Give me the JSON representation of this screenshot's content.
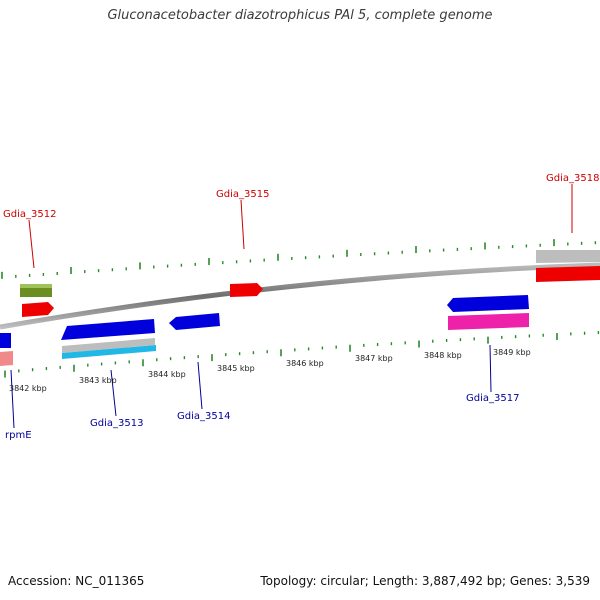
{
  "header": {
    "title": "Gluconacetobacter diazotrophicus PAl 5, complete genome"
  },
  "footer": {
    "accession": "Accession: NC_011365",
    "stats": "Topology: circular; Length: 3,887,492 bp; Genes: 3,539"
  },
  "kbp_ticks": [
    {
      "label": "3842 kbp"
    },
    {
      "label": "3843 kbp"
    },
    {
      "label": "3844 kbp"
    },
    {
      "label": "3845 kbp"
    },
    {
      "label": "3846 kbp"
    },
    {
      "label": "3847 kbp"
    },
    {
      "label": "3848 kbp"
    },
    {
      "label": "3849 kbp"
    }
  ],
  "gene_labels": [
    {
      "name": "Gdia_3512",
      "strand": "forward",
      "color": "#cc0000"
    },
    {
      "name": "Gdia_3515",
      "strand": "forward",
      "color": "#cc0000"
    },
    {
      "name": "Gdia_3518",
      "strand": "forward",
      "color": "#cc0000"
    },
    {
      "name": "rpmE",
      "strand": "reverse",
      "color": "#000099"
    },
    {
      "name": "Gdia_3513",
      "strand": "reverse",
      "color": "#000099"
    },
    {
      "name": "Gdia_3514",
      "strand": "reverse",
      "color": "#000099"
    },
    {
      "name": "Gdia_3517",
      "strand": "reverse",
      "color": "#000099"
    }
  ],
  "colors": {
    "backbone": "#808080",
    "tick": "#2a8a2a",
    "forward_label": "#cc0000",
    "reverse_label": "#000099",
    "gene_red": "#ee0000",
    "gene_olive": "#6b8e23",
    "gene_blue": "#0000dd",
    "gene_gray": "#bdbdbd",
    "gene_cyan": "#22b8e6",
    "gene_magenta": "#ee22aa",
    "gene_pink": "#f08a8a"
  }
}
